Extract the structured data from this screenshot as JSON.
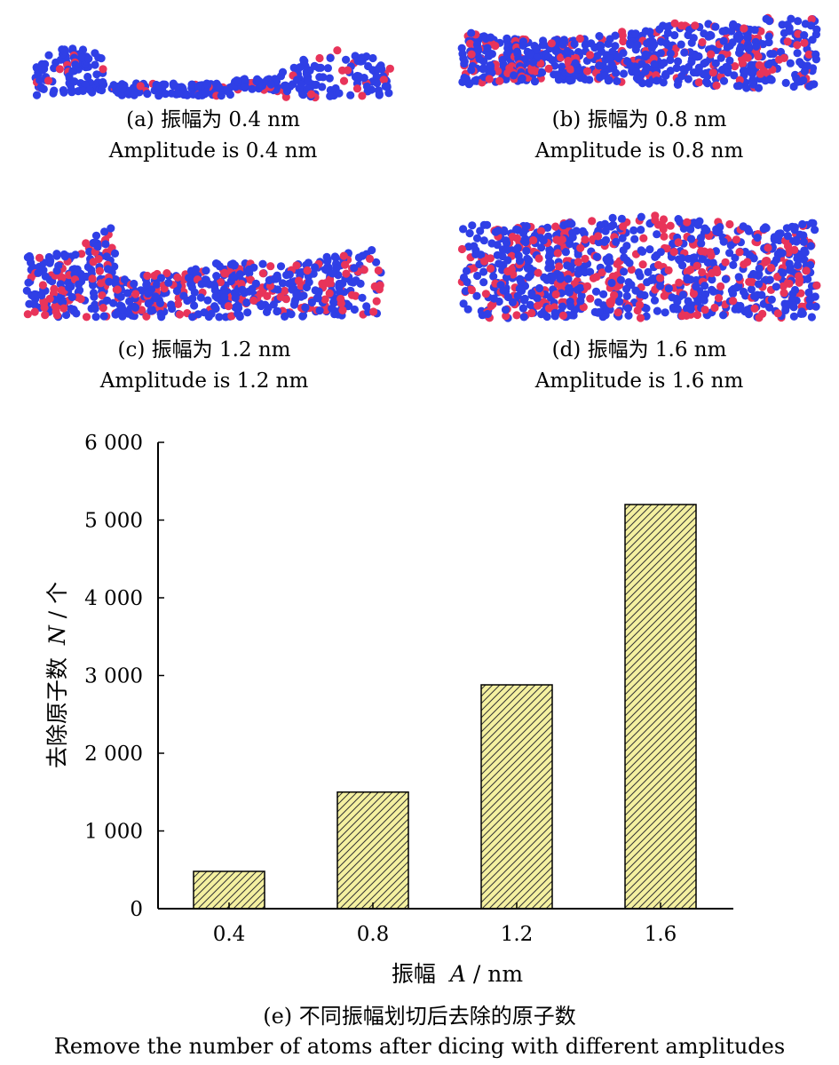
{
  "panels": [
    {
      "caption_cn": "(a) 振幅为 0.4 nm",
      "caption_en": "Amplitude is 0.4 nm",
      "amplitude": 0.4
    },
    {
      "caption_cn": "(b) 振幅为 0.8 nm",
      "caption_en": "Amplitude is 0.8 nm",
      "amplitude": 0.8
    },
    {
      "caption_cn": "(c) 振幅为 1.2 nm",
      "caption_en": "Amplitude is 1.2 nm",
      "amplitude": 1.2
    },
    {
      "caption_cn": "(d) 振幅为 1.6 nm",
      "caption_en": "Amplitude is 1.6 nm",
      "amplitude": 1.6
    }
  ],
  "atom_colors": {
    "blue": "#2f3fe6",
    "red": "#e8345a"
  },
  "chart_data": {
    "type": "bar",
    "categories": [
      "0.4",
      "0.8",
      "1.2",
      "1.6"
    ],
    "values": [
      480,
      1500,
      2880,
      5200
    ],
    "xlabel_cn": "振幅",
    "xlabel_var": "A",
    "xlabel_unit": " / nm",
    "ylabel_cn": "去除原子数",
    "ylabel_var": "N",
    "ylabel_unit": " / 个",
    "ylim": [
      0,
      6000
    ],
    "yticks": [
      0,
      1000,
      2000,
      3000,
      4000,
      5000,
      6000
    ],
    "ytick_labels": [
      "0",
      "1 000",
      "2 000",
      "3 000",
      "4 000",
      "5 000",
      "6 000"
    ],
    "bar_color": "#f4f0a0",
    "hatch": "diagonal",
    "grid": false
  },
  "figure_caption": {
    "cn": "(e) 不同振幅划切后去除的原子数",
    "en": "Remove the number of atoms after dicing with different amplitudes"
  }
}
